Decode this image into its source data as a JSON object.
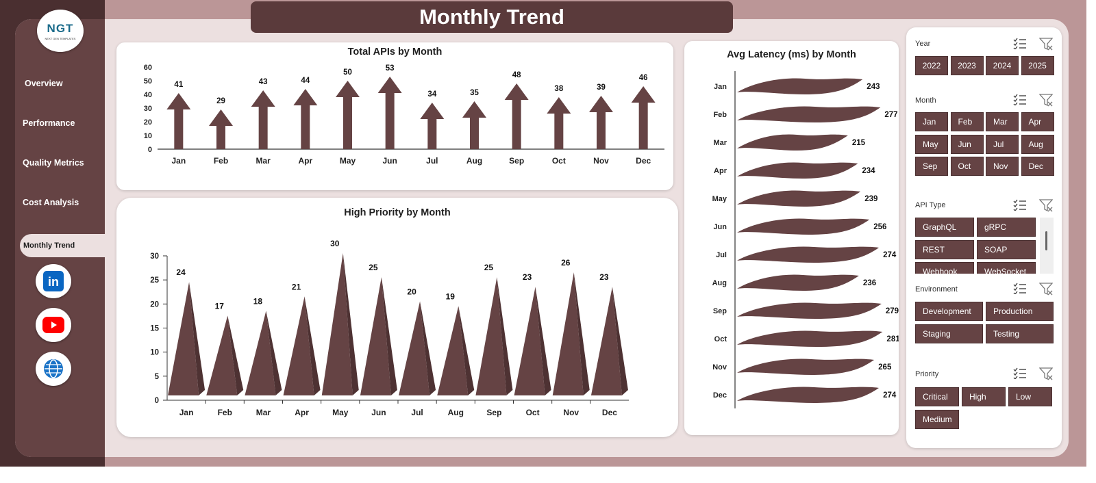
{
  "page_title": "Monthly Trend",
  "logo": {
    "text": "NGT",
    "subtitle": "NEXT GEN TEMPLATES"
  },
  "sidebar": {
    "items": [
      {
        "label": "Overview"
      },
      {
        "label": "Performance"
      },
      {
        "label": "Quality Metrics"
      },
      {
        "label": "Cost Analysis"
      },
      {
        "label": "Monthly Trend"
      }
    ],
    "active": "Monthly Trend",
    "social": [
      {
        "icon": "linkedin-icon",
        "glyph": "in",
        "color": "#0a66c2"
      },
      {
        "icon": "youtube-icon",
        "color": "#ff0000"
      },
      {
        "icon": "globe-icon",
        "color": "#1a73c7"
      }
    ]
  },
  "colors": {
    "accent": "#654344",
    "dark": "#4a2f30",
    "frame": "#bb9697",
    "panel": "#ece0e0"
  },
  "chart_data": [
    {
      "type": "bar",
      "title": "Total APIs by Month",
      "categories": [
        "Jan",
        "Feb",
        "Mar",
        "Apr",
        "May",
        "Jun",
        "Jul",
        "Aug",
        "Sep",
        "Oct",
        "Nov",
        "Dec"
      ],
      "values": [
        41,
        29,
        43,
        44,
        50,
        53,
        34,
        35,
        48,
        38,
        39,
        46
      ],
      "ylim": [
        0,
        60
      ],
      "yticks": [
        0,
        10,
        20,
        30,
        40,
        50,
        60
      ]
    },
    {
      "type": "bar",
      "title": "High Priority by Month",
      "categories": [
        "Jan",
        "Feb",
        "Mar",
        "Apr",
        "May",
        "Jun",
        "Jul",
        "Aug",
        "Sep",
        "Oct",
        "Nov",
        "Dec"
      ],
      "values": [
        24,
        17,
        18,
        21,
        30,
        25,
        20,
        19,
        25,
        23,
        26,
        23
      ],
      "ylim": [
        0,
        30
      ],
      "yticks": [
        0,
        5,
        10,
        15,
        20,
        25,
        30
      ]
    },
    {
      "type": "bar",
      "title": "Avg Latency (ms) by Month",
      "orientation": "horizontal",
      "categories": [
        "Jan",
        "Feb",
        "Mar",
        "Apr",
        "May",
        "Jun",
        "Jul",
        "Aug",
        "Sep",
        "Oct",
        "Nov",
        "Dec"
      ],
      "values": [
        243,
        277,
        215,
        234,
        239,
        256,
        274,
        236,
        279,
        281,
        265,
        274
      ],
      "xlim": [
        0,
        300
      ]
    }
  ],
  "filters": {
    "year": {
      "label": "Year",
      "options": [
        "2022",
        "2023",
        "2024",
        "2025"
      ]
    },
    "month": {
      "label": "Month",
      "options": [
        "Jan",
        "Feb",
        "Mar",
        "Apr",
        "May",
        "Jun",
        "Jul",
        "Aug",
        "Sep",
        "Oct",
        "Nov",
        "Dec"
      ]
    },
    "api_type": {
      "label": "API Type",
      "options": [
        "GraphQL",
        "gRPC",
        "REST",
        "SOAP",
        "Webhook",
        "WebSocket"
      ]
    },
    "environment": {
      "label": "Environment",
      "options": [
        "Development",
        "Production",
        "Staging",
        "Testing"
      ]
    },
    "priority": {
      "label": "Priority",
      "options": [
        "Critical",
        "High",
        "Low",
        "Medium"
      ]
    }
  }
}
